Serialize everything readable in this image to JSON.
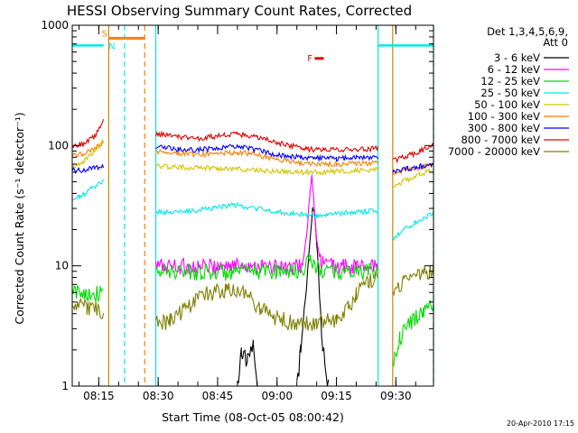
{
  "chart_data": {
    "type": "line",
    "title": "HESSI Observing Summary Count Rates, Corrected",
    "xlabel": "Start Time (08-Oct-05 08:00:42)",
    "ylabel": "Corrected Count Rate (s⁻¹ detector⁻¹)",
    "yscale": "log",
    "ylim": [
      1,
      1000
    ],
    "xlim_minutes": [
      8.3,
      99.5
    ],
    "x_unit": "minutes after 08:00",
    "x_ticks": [
      {
        "t": 15,
        "label": "08:15"
      },
      {
        "t": 30,
        "label": "08:30"
      },
      {
        "t": 45,
        "label": "08:45"
      },
      {
        "t": 60,
        "label": "09:00"
      },
      {
        "t": 75,
        "label": "09:15"
      },
      {
        "t": 90,
        "label": "09:30"
      }
    ],
    "y_ticks": [
      {
        "v": 1,
        "label": "1"
      },
      {
        "v": 10,
        "label": "10"
      },
      {
        "v": 100,
        "label": "100"
      },
      {
        "v": 1000,
        "label": "1000"
      }
    ],
    "legend_header": [
      "Det 1,3,4,5,6,9,",
      "Att 0"
    ],
    "legend_position": "right",
    "timestamp": "20-Apr-2010 17:15",
    "saa_level": 680,
    "saa_color": "#00e8e8",
    "saa_intervals": [
      [
        8.3,
        16.2
      ],
      [
        85.5,
        99.5
      ]
    ],
    "markers": [
      {
        "label": "S",
        "t_start": 17.6,
        "t_end": 26.6,
        "y": 780,
        "color": "#ff7f00"
      },
      {
        "label": "N",
        "t_start": 16.6,
        "t_end": 16.6,
        "y": 680,
        "color": "#00e8e8"
      },
      {
        "label": "F",
        "t_start": 69.5,
        "t_end": 71.8,
        "y": 530,
        "color": "#e00000"
      }
    ],
    "event_lines": [
      {
        "t": 17.5,
        "color": "#cc8800",
        "style": "solid"
      },
      {
        "t": 21.5,
        "color": "#00e8e8",
        "style": "dashed"
      },
      {
        "t": 26.6,
        "color": "#ff7f00",
        "style": "dashed"
      },
      {
        "t": 29.4,
        "color": "#00e8e8",
        "style": "solid"
      },
      {
        "t": 85.5,
        "color": "#00e8e8",
        "style": "solid"
      },
      {
        "t": 89.2,
        "color": "#cc8800",
        "style": "solid"
      },
      {
        "t": 99.5,
        "color": "#00e8e8",
        "style": "dashed"
      }
    ],
    "series": [
      {
        "name": "3 - 6 keV",
        "color": "#000000",
        "segments": [
          [
            [
              50.0,
              1.0
            ],
            [
              51.0,
              2.0
            ],
            [
              52.5,
              1.6
            ],
            [
              54.0,
              2.1
            ],
            [
              55.0,
              1.0
            ]
          ],
          [
            [
              65.0,
              1.0
            ],
            [
              66.0,
              2.0
            ],
            [
              68.0,
              12.0
            ],
            [
              69.0,
              30.0
            ],
            [
              69.5,
              28.0
            ],
            [
              70.5,
              8.0
            ],
            [
              71.5,
              2.2
            ],
            [
              73.0,
              1.0
            ]
          ]
        ]
      },
      {
        "name": "6 - 12 keV",
        "color": "#ff00ff",
        "segments": [
          [
            [
              29.4,
              10.0
            ],
            [
              35.0,
              10.0
            ],
            [
              40.0,
              9.8
            ],
            [
              45.0,
              10.0
            ],
            [
              52.0,
              10.2
            ],
            [
              56.0,
              10.0
            ],
            [
              60.0,
              9.7
            ],
            [
              64.0,
              9.5
            ],
            [
              66.5,
              10.5
            ],
            [
              67.5,
              18.0
            ],
            [
              68.3,
              40.0
            ],
            [
              68.8,
              55.0
            ],
            [
              69.3,
              35.0
            ],
            [
              70.0,
              16.0
            ],
            [
              71.0,
              11.0
            ],
            [
              74.0,
              10.0
            ],
            [
              80.0,
              9.8
            ],
            [
              85.5,
              10.0
            ]
          ]
        ]
      },
      {
        "name": "12 - 25 keV",
        "color": "#00dd00",
        "segments": [
          [
            [
              8.3,
              6.0
            ],
            [
              12.0,
              6.0
            ],
            [
              16.2,
              5.8
            ]
          ],
          [
            [
              29.4,
              9.0
            ],
            [
              40.0,
              9.0
            ],
            [
              50.0,
              8.8
            ],
            [
              60.0,
              9.2
            ],
            [
              66.0,
              9.0
            ],
            [
              68.5,
              12.0
            ],
            [
              69.0,
              10.0
            ],
            [
              72.0,
              9.0
            ],
            [
              85.5,
              9.0
            ]
          ],
          [
            [
              89.2,
              1.5
            ],
            [
              91.0,
              2.5
            ],
            [
              94.0,
              3.5
            ],
            [
              97.0,
              4.3
            ],
            [
              99.5,
              5.0
            ]
          ]
        ]
      },
      {
        "name": "25 - 50 keV",
        "color": "#00e8e8",
        "segments": [
          [
            [
              8.3,
              35.0
            ],
            [
              10.0,
              37.0
            ],
            [
              13.0,
              43.0
            ],
            [
              16.2,
              52.0
            ]
          ],
          [
            [
              29.4,
              28.0
            ],
            [
              35.0,
              28.0
            ],
            [
              40.0,
              29.0
            ],
            [
              45.0,
              31.0
            ],
            [
              50.0,
              32.0
            ],
            [
              55.0,
              30.0
            ],
            [
              60.0,
              28.0
            ],
            [
              66.0,
              27.0
            ],
            [
              70.0,
              26.0
            ],
            [
              75.0,
              27.0
            ],
            [
              80.0,
              28.0
            ],
            [
              85.5,
              29.0
            ]
          ],
          [
            [
              89.2,
              17.0
            ],
            [
              92.0,
              20.0
            ],
            [
              95.0,
              23.0
            ],
            [
              99.5,
              28.0
            ]
          ]
        ]
      },
      {
        "name": "50 - 100 keV",
        "color": "#d4c400",
        "segments": [
          [
            [
              8.3,
              66.0
            ],
            [
              11.0,
              74.0
            ],
            [
              14.0,
              90.0
            ],
            [
              16.2,
              110.0
            ]
          ],
          [
            [
              29.4,
              68.0
            ],
            [
              35.0,
              66.0
            ],
            [
              40.0,
              66.0
            ],
            [
              45.0,
              65.0
            ],
            [
              50.0,
              64.0
            ],
            [
              55.0,
              62.0
            ],
            [
              60.0,
              61.0
            ],
            [
              66.0,
              60.0
            ],
            [
              70.0,
              60.0
            ],
            [
              75.0,
              61.0
            ],
            [
              80.0,
              62.0
            ],
            [
              85.5,
              63.0
            ]
          ],
          [
            [
              89.2,
              46.0
            ],
            [
              93.0,
              52.0
            ],
            [
              96.0,
              57.0
            ],
            [
              99.5,
              63.0
            ]
          ]
        ]
      },
      {
        "name": "100 - 300 keV",
        "color": "#ff7f00",
        "segments": [
          [
            [
              8.3,
              82.0
            ],
            [
              11.0,
              86.0
            ],
            [
              14.0,
              95.0
            ],
            [
              16.2,
              105.0
            ]
          ],
          [
            [
              29.4,
              90.0
            ],
            [
              35.0,
              86.0
            ],
            [
              40.0,
              84.0
            ],
            [
              45.0,
              86.0
            ],
            [
              50.0,
              88.0
            ],
            [
              55.0,
              84.0
            ],
            [
              60.0,
              76.0
            ],
            [
              66.0,
              72.0
            ],
            [
              70.0,
              70.0
            ],
            [
              75.0,
              70.0
            ],
            [
              80.0,
              71.0
            ],
            [
              85.5,
              72.0
            ]
          ],
          [
            [
              89.2,
              60.0
            ],
            [
              93.0,
              63.0
            ],
            [
              96.0,
              66.0
            ],
            [
              99.5,
              70.0
            ]
          ]
        ]
      },
      {
        "name": "300 - 800 keV",
        "color": "#0000ff",
        "segments": [
          [
            [
              8.3,
              62.0
            ],
            [
              11.0,
              63.0
            ],
            [
              14.0,
              65.0
            ],
            [
              16.2,
              67.0
            ]
          ],
          [
            [
              29.4,
              98.0
            ],
            [
              35.0,
              93.0
            ],
            [
              40.0,
              92.0
            ],
            [
              45.0,
              95.0
            ],
            [
              50.0,
              98.0
            ],
            [
              55.0,
              92.0
            ],
            [
              60.0,
              84.0
            ],
            [
              66.0,
              80.0
            ],
            [
              70.0,
              78.0
            ],
            [
              75.0,
              78.0
            ],
            [
              80.0,
              79.0
            ],
            [
              85.5,
              80.0
            ]
          ],
          [
            [
              89.2,
              62.0
            ],
            [
              93.0,
              64.0
            ],
            [
              96.0,
              67.0
            ],
            [
              99.5,
              70.0
            ]
          ]
        ]
      },
      {
        "name": "800 - 7000 keV",
        "color": "#e00000",
        "segments": [
          [
            [
              8.3,
              100.0
            ],
            [
              11.0,
              102.0
            ],
            [
              14.0,
              120.0
            ],
            [
              16.2,
              165.0
            ]
          ],
          [
            [
              29.4,
              125.0
            ],
            [
              35.0,
              118.0
            ],
            [
              40.0,
              115.0
            ],
            [
              45.0,
              120.0
            ],
            [
              50.0,
              125.0
            ],
            [
              55.0,
              118.0
            ],
            [
              60.0,
              105.0
            ],
            [
              66.0,
              96.0
            ],
            [
              70.0,
              92.0
            ],
            [
              75.0,
              92.0
            ],
            [
              80.0,
              93.0
            ],
            [
              85.5,
              95.0
            ]
          ],
          [
            [
              89.2,
              75.0
            ],
            [
              93.0,
              82.0
            ],
            [
              96.0,
              90.0
            ],
            [
              99.5,
              100.0
            ]
          ]
        ]
      },
      {
        "name": "7000 - 20000 keV",
        "color": "#808000",
        "segments": [
          [
            [
              8.3,
              5.0
            ],
            [
              12.0,
              4.5
            ],
            [
              16.2,
              4.3
            ]
          ],
          [
            [
              29.4,
              3.3
            ],
            [
              33.0,
              3.5
            ],
            [
              37.0,
              4.4
            ],
            [
              42.0,
              5.8
            ],
            [
              47.0,
              6.3
            ],
            [
              52.0,
              5.8
            ],
            [
              56.0,
              4.5
            ],
            [
              60.0,
              3.7
            ],
            [
              65.0,
              3.3
            ],
            [
              70.0,
              3.4
            ],
            [
              75.0,
              3.6
            ],
            [
              78.0,
              4.5
            ],
            [
              80.0,
              6.0
            ],
            [
              83.0,
              7.5
            ],
            [
              85.5,
              8.0
            ]
          ],
          [
            [
              89.2,
              6.0
            ],
            [
              92.0,
              7.5
            ],
            [
              95.0,
              8.5
            ],
            [
              99.5,
              9.5
            ]
          ]
        ]
      }
    ]
  }
}
